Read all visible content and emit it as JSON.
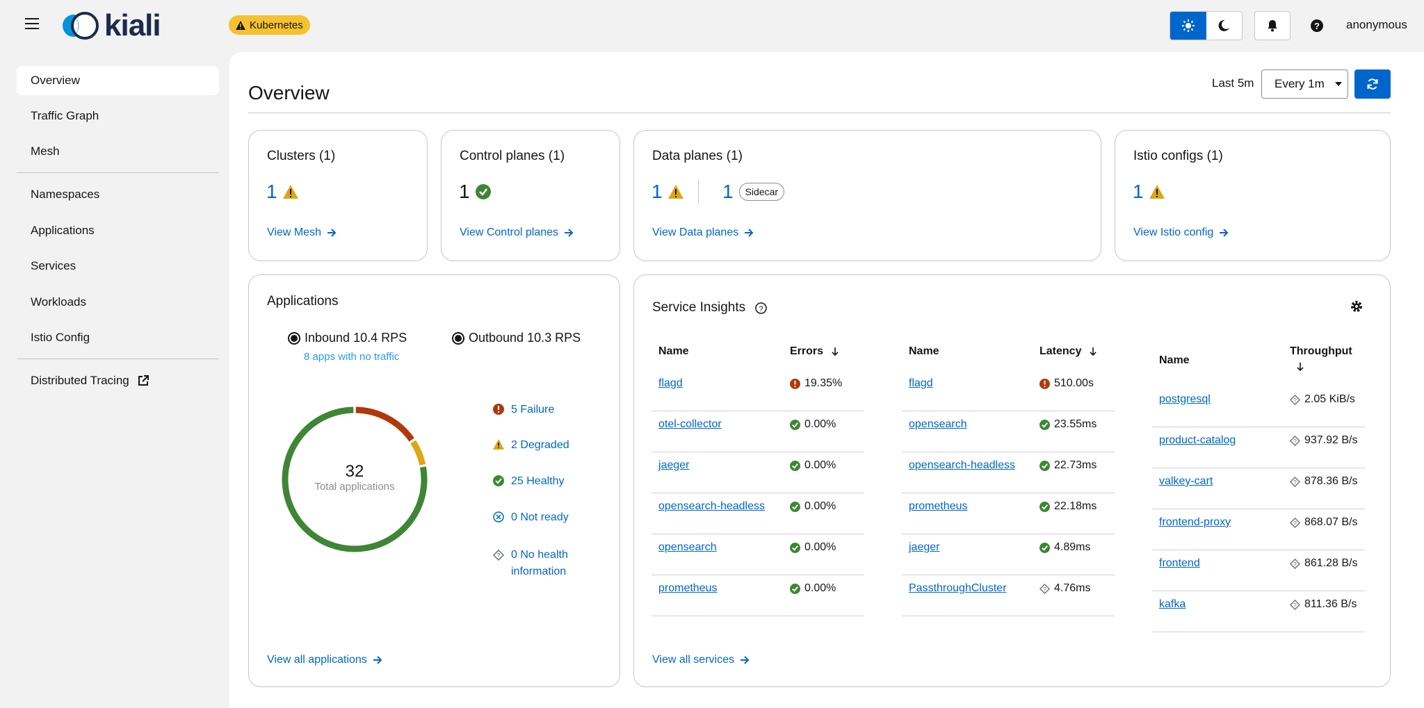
{
  "header": {
    "logo_text": "kiali",
    "platform_badge": "Kubernetes",
    "user": "anonymous"
  },
  "sidebar": {
    "items": [
      {
        "label": "Overview"
      },
      {
        "label": "Traffic Graph"
      },
      {
        "label": "Mesh"
      },
      {
        "label": "Namespaces"
      },
      {
        "label": "Applications"
      },
      {
        "label": "Services"
      },
      {
        "label": "Workloads"
      },
      {
        "label": "Istio Config"
      },
      {
        "label": "Distributed Tracing"
      }
    ]
  },
  "page": {
    "title": "Overview",
    "time_range": "Last 5m",
    "refresh_interval": "Every 1m"
  },
  "cards": {
    "clusters": {
      "title": "Clusters (1)",
      "count": "1",
      "link": "View Mesh"
    },
    "control_planes": {
      "title": "Control planes (1)",
      "count": "1",
      "link": "View Control planes"
    },
    "data_planes": {
      "title": "Data planes (1)",
      "count": "1",
      "count2": "1",
      "badge": "Sidecar",
      "link": "View Data planes"
    },
    "istio_configs": {
      "title": "Istio configs (1)",
      "count": "1",
      "link": "View Istio config"
    }
  },
  "applications": {
    "title": "Applications",
    "inbound": "Inbound 10.4 RPS",
    "outbound": "Outbound 10.3 RPS",
    "no_traffic": "8 apps with no traffic",
    "total": "32",
    "total_label": "Total applications",
    "legend": [
      {
        "label": "5 Failure",
        "color": "#b1380b",
        "count": 5
      },
      {
        "label": "2 Degraded",
        "color": "#dca614",
        "count": 2
      },
      {
        "label": "25 Healthy",
        "color": "#3e8635",
        "count": 25
      },
      {
        "label": "0 Not ready",
        "color": "#0066cc",
        "count": 0
      },
      {
        "label": "0 No health information",
        "color": "#6a6e73",
        "count": 0
      }
    ],
    "link": "View all applications"
  },
  "insights": {
    "title": "Service Insights",
    "errors_table": {
      "headers": [
        "Name",
        "Errors"
      ],
      "rows": [
        {
          "name": "flagd",
          "value": "19.35%",
          "status": "error"
        },
        {
          "name": "otel-collector",
          "value": "0.00%",
          "status": "ok"
        },
        {
          "name": "jaeger",
          "value": "0.00%",
          "status": "ok"
        },
        {
          "name": "opensearch-headless",
          "value": "0.00%",
          "status": "ok"
        },
        {
          "name": "opensearch",
          "value": "0.00%",
          "status": "ok"
        },
        {
          "name": "prometheus",
          "value": "0.00%",
          "status": "ok"
        }
      ]
    },
    "latency_table": {
      "headers": [
        "Name",
        "Latency"
      ],
      "rows": [
        {
          "name": "flagd",
          "value": "510.00s",
          "status": "error"
        },
        {
          "name": "opensearch",
          "value": "23.55ms",
          "status": "ok"
        },
        {
          "name": "opensearch-headless",
          "value": "22.73ms",
          "status": "ok"
        },
        {
          "name": "prometheus",
          "value": "22.18ms",
          "status": "ok"
        },
        {
          "name": "jaeger",
          "value": "4.89ms",
          "status": "ok"
        },
        {
          "name": "PassthroughCluster",
          "value": "4.76ms",
          "status": "na"
        }
      ]
    },
    "throughput_table": {
      "headers": [
        "Name",
        "Throughput"
      ],
      "rows": [
        {
          "name": "postgresql",
          "value": "2.05 KiB/s",
          "status": "na"
        },
        {
          "name": "product-catalog",
          "value": "937.92 B/s",
          "status": "na"
        },
        {
          "name": "valkey-cart",
          "value": "878.36 B/s",
          "status": "na"
        },
        {
          "name": "frontend-proxy",
          "value": "868.07 B/s",
          "status": "na"
        },
        {
          "name": "frontend",
          "value": "861.28 B/s",
          "status": "na"
        },
        {
          "name": "kafka",
          "value": "811.36 B/s",
          "status": "na"
        }
      ]
    },
    "link": "View all services"
  }
}
